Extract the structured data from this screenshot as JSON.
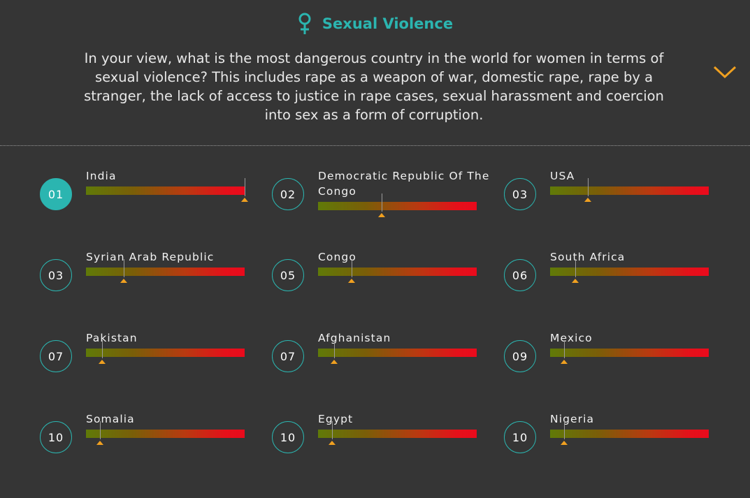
{
  "header": {
    "title": "Sexual Violence",
    "icon": "venus-icon",
    "question": "In your view, what is the most dangerous country in the world for women in terms of sexual violence? This includes rape as a weapon of war, domestic rape, rape by a stranger, the lack of access to justice in rape cases, sexual harassment and coercion into sex as a form of corruption.",
    "expand_icon": "chevron-down-icon"
  },
  "colors": {
    "accent": "#2bb5b0",
    "background": "#353535",
    "marker": "#f0a020",
    "bar_start": "#607a08",
    "bar_end": "#ea0a1c"
  },
  "rankings": [
    {
      "rank": "01",
      "country": "India",
      "level": 1.0,
      "active": true
    },
    {
      "rank": "02",
      "country": "Democratic Republic Of The Congo",
      "level": 0.4,
      "active": false
    },
    {
      "rank": "03",
      "country": "USA",
      "level": 0.24,
      "active": false
    },
    {
      "rank": "03",
      "country": "Syrian Arab Republic",
      "level": 0.24,
      "active": false
    },
    {
      "rank": "05",
      "country": "Congo",
      "level": 0.21,
      "active": false
    },
    {
      "rank": "06",
      "country": "South Africa",
      "level": 0.16,
      "active": false
    },
    {
      "rank": "07",
      "country": "Pakistan",
      "level": 0.1,
      "active": false
    },
    {
      "rank": "07",
      "country": "Afghanistan",
      "level": 0.1,
      "active": false
    },
    {
      "rank": "09",
      "country": "Mexico",
      "level": 0.09,
      "active": false
    },
    {
      "rank": "10",
      "country": "Somalia",
      "level": 0.09,
      "active": false
    },
    {
      "rank": "10",
      "country": "Egypt",
      "level": 0.09,
      "active": false
    },
    {
      "rank": "10",
      "country": "Nigeria",
      "level": 0.09,
      "active": false
    }
  ]
}
